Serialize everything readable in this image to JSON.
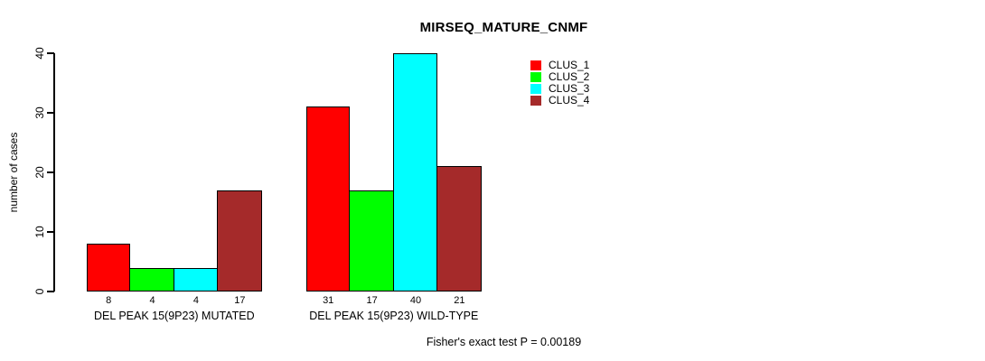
{
  "chart_data": {
    "type": "bar",
    "title": "MIRSEQ_MATURE_CNMF",
    "ylabel": "number of cases",
    "xlabel": "",
    "ylim": [
      0,
      40
    ],
    "yticks": [
      0,
      10,
      20,
      30,
      40
    ],
    "grid": false,
    "legend_position": "top-right",
    "categories": [
      "DEL PEAK 15(9P23) MUTATED",
      "DEL PEAK 15(9P23) WILD-TYPE"
    ],
    "series": [
      {
        "name": "CLUS_1",
        "color": "#FF0000",
        "values": [
          8,
          31
        ]
      },
      {
        "name": "CLUS_2",
        "color": "#00FF00",
        "values": [
          4,
          17
        ]
      },
      {
        "name": "CLUS_3",
        "color": "#00FFFF",
        "values": [
          4,
          40
        ]
      },
      {
        "name": "CLUS_4",
        "color": "#A52A2A",
        "values": [
          17,
          21
        ]
      }
    ],
    "bar_value_labels": [
      [
        8,
        4,
        4,
        17
      ],
      [
        31,
        17,
        40,
        21
      ]
    ],
    "annotation": "Fisher's exact test P = 0.00189"
  }
}
